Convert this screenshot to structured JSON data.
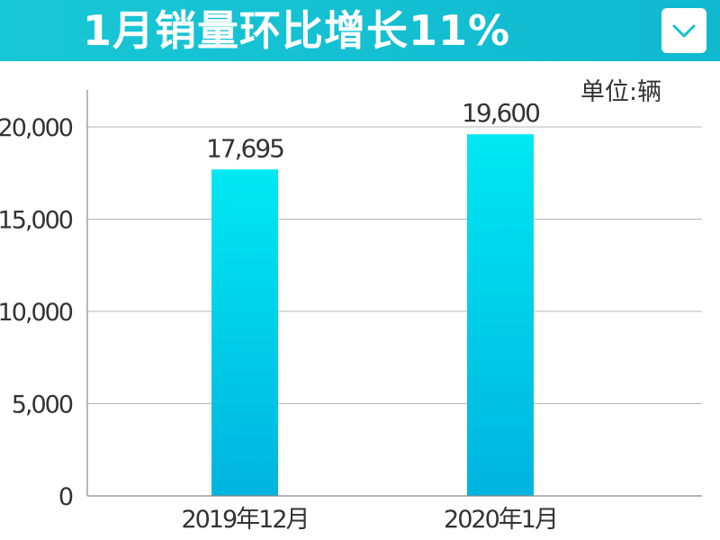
{
  "header": {
    "title": "1月销量环比增长11%"
  },
  "colors": {
    "header_bg": "#14c1d3",
    "bar_top": "#00e8f2",
    "bar_bottom": "#00b4e0",
    "grid": "#b5b5b5",
    "axis": "#888888",
    "text": "#333333"
  },
  "icons": {
    "collapse": "chevron-down-icon"
  },
  "chart_data": {
    "type": "bar",
    "title": "1月销量环比增长11%",
    "unit_label": "单位:辆",
    "categories": [
      "2019年12月",
      "2020年1月"
    ],
    "values": [
      17695,
      19600
    ],
    "data_labels": [
      "17,695",
      "19,600"
    ],
    "ylim": [
      0,
      22000
    ],
    "yticks": [
      0,
      5000,
      10000,
      15000,
      20000
    ],
    "ytick_labels": [
      "0",
      "5,000",
      "10,000",
      "15,000",
      "20,000"
    ],
    "grid": true,
    "legend": "none"
  }
}
